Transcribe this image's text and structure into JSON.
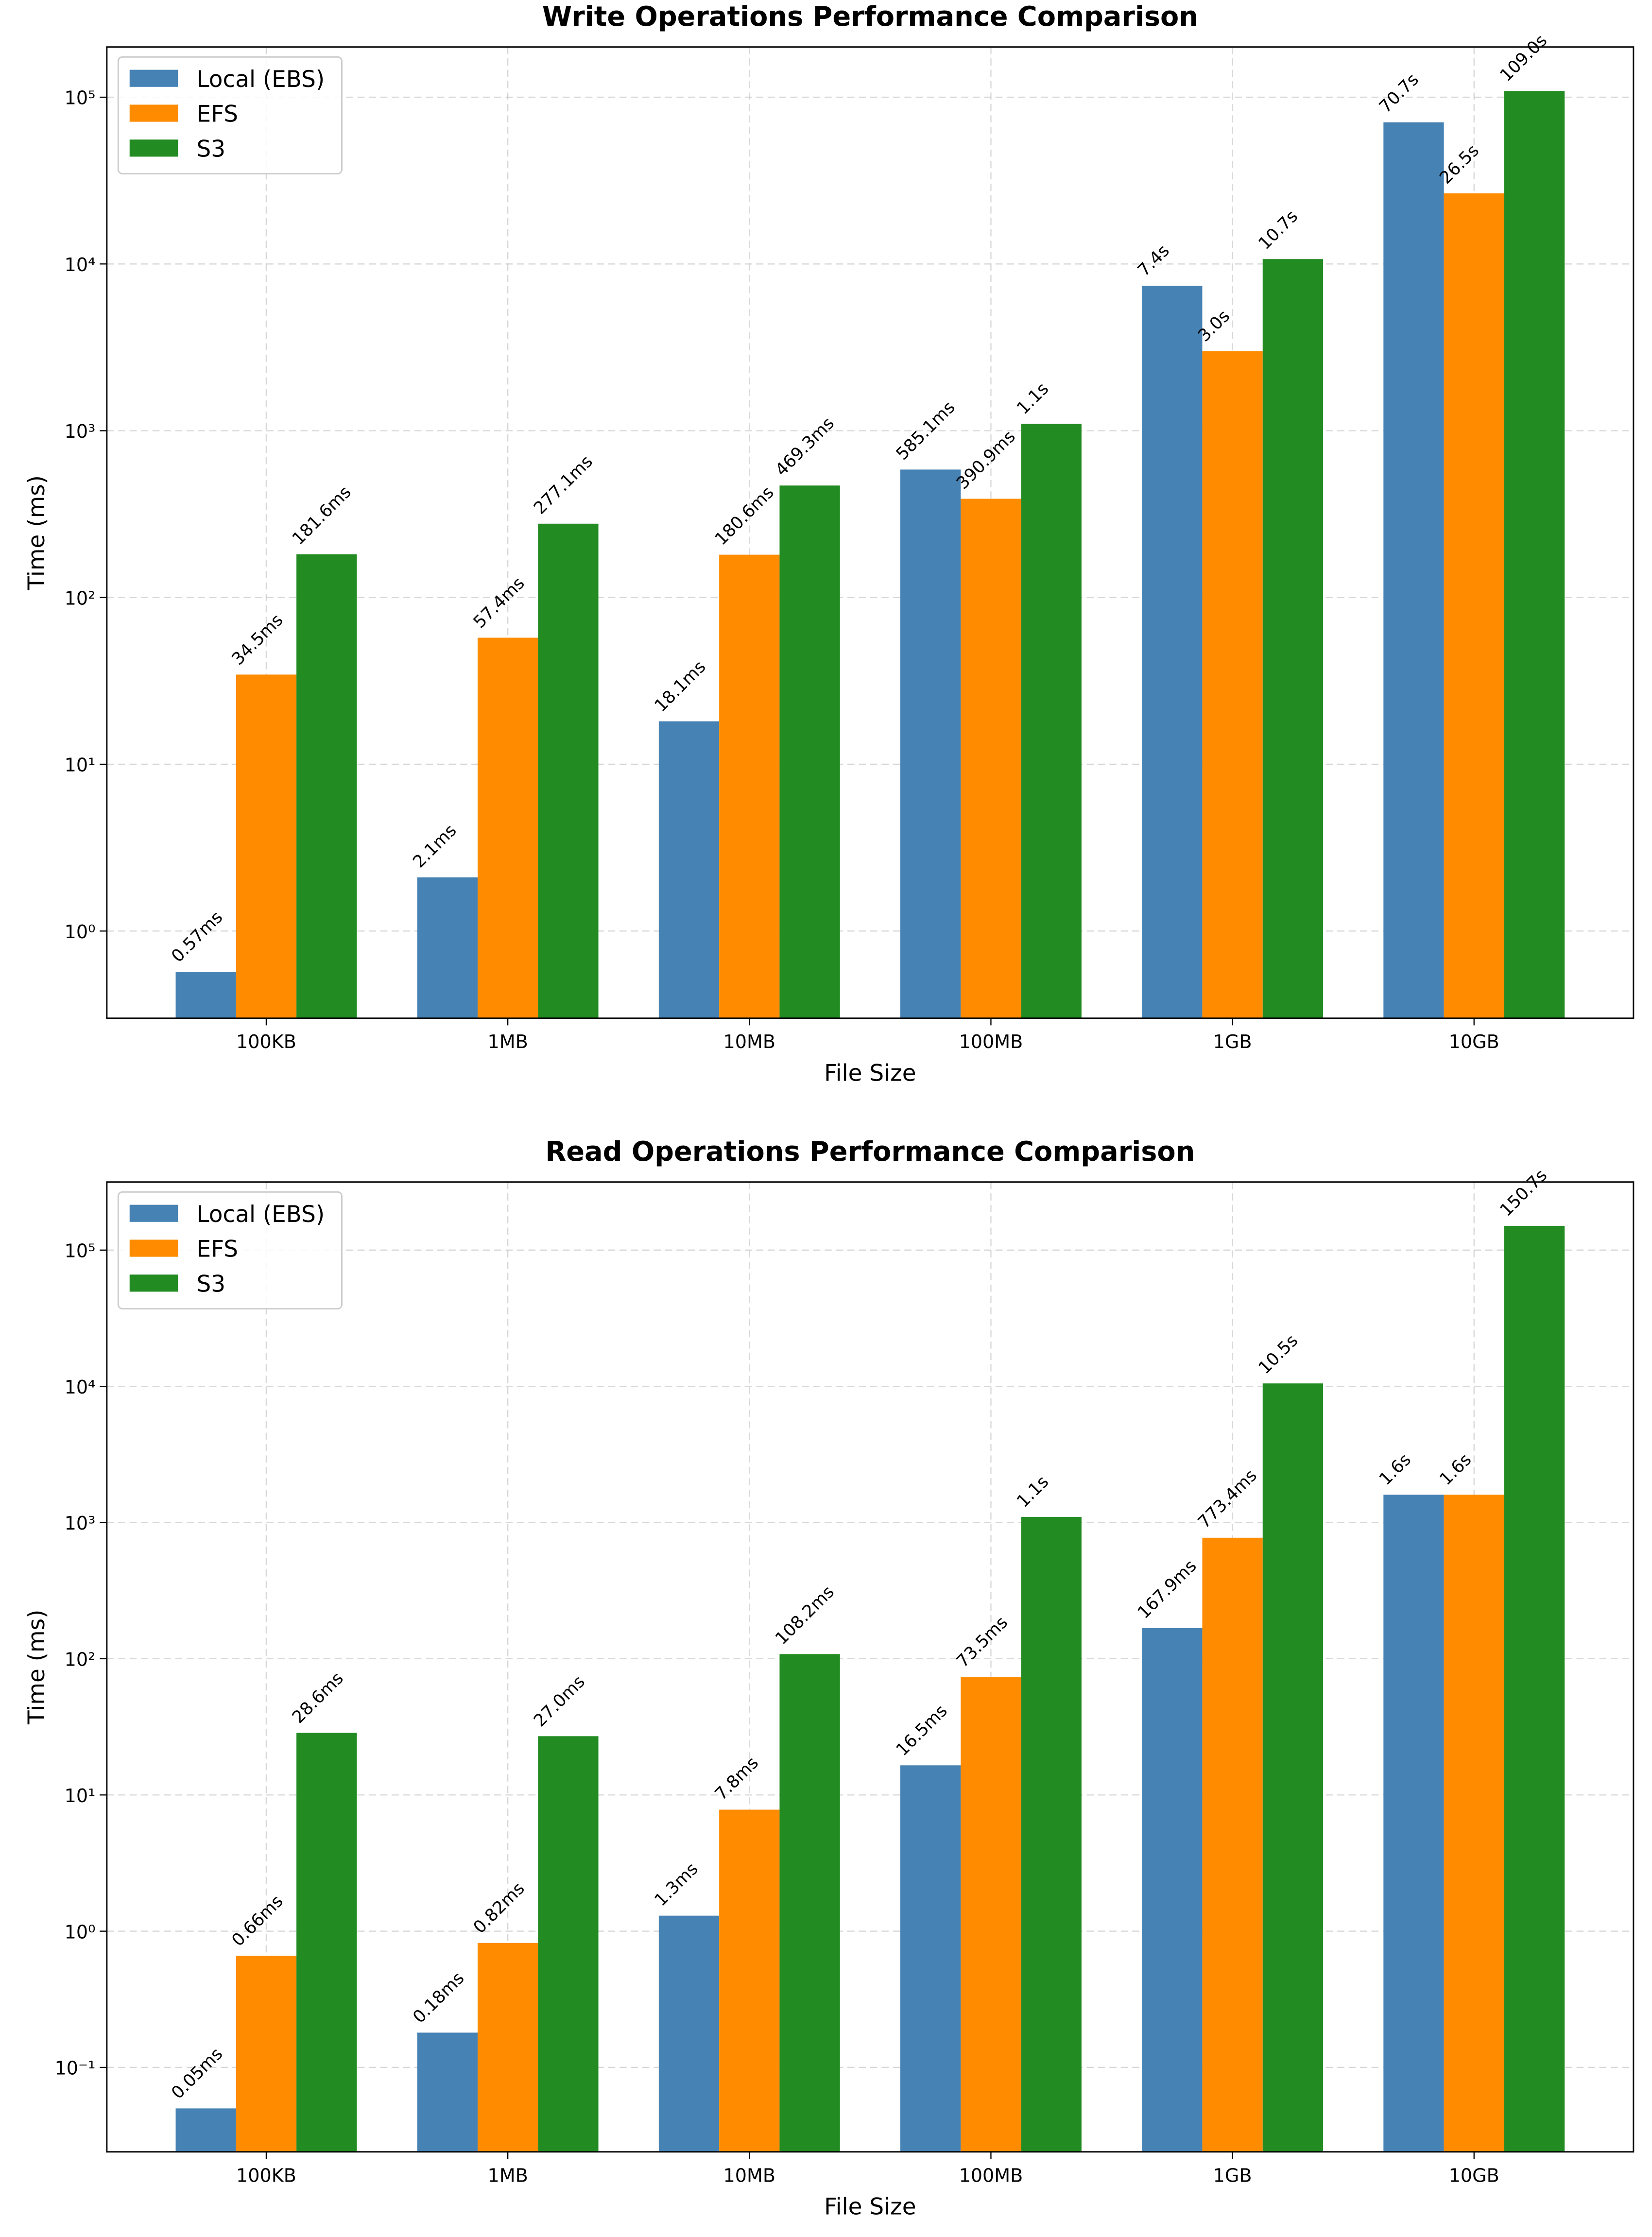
{
  "chart_data": [
    {
      "type": "bar",
      "title": "Write Operations Performance Comparison",
      "x_label": "File Size",
      "y_label": "Time (ms)",
      "categories": [
        "100KB",
        "1MB",
        "10MB",
        "100MB",
        "1GB",
        "10GB"
      ],
      "series": [
        {
          "name": "Local (EBS)",
          "color": "#4682b4",
          "values": [
            0.57,
            2.1,
            18.1,
            585.1,
            7400,
            70700
          ],
          "value_labels": [
            "0.57ms",
            "2.1ms",
            "18.1ms",
            "585.1ms",
            "7.4s",
            "70.7s"
          ]
        },
        {
          "name": "EFS",
          "color": "#ff8c00",
          "values": [
            34.5,
            57.4,
            180.6,
            390.9,
            3000,
            26500
          ],
          "value_labels": [
            "34.5ms",
            "57.4ms",
            "180.6ms",
            "390.9ms",
            "3.0s",
            "26.5s"
          ]
        },
        {
          "name": "S3",
          "color": "#228b22",
          "values": [
            181.6,
            277.1,
            469.3,
            1100,
            10700,
            109000
          ],
          "value_labels": [
            "181.6ms",
            "277.1ms",
            "469.3ms",
            "1.1s",
            "10.7s",
            "109.0s"
          ]
        }
      ],
      "ylim": [
        0.3,
        200000
      ],
      "log_scale": true,
      "grid": true,
      "legend": "upper left",
      "yticks": [
        {
          "value": 1,
          "label": "10⁰"
        },
        {
          "value": 10,
          "label": "10¹"
        },
        {
          "value": 100,
          "label": "10²"
        },
        {
          "value": 1000,
          "label": "10³"
        },
        {
          "value": 10000,
          "label": "10⁴"
        },
        {
          "value": 100000,
          "label": "10⁵"
        }
      ]
    },
    {
      "type": "bar",
      "title": "Read Operations Performance Comparison",
      "x_label": "File Size",
      "y_label": "Time (ms)",
      "categories": [
        "100KB",
        "1MB",
        "10MB",
        "100MB",
        "1GB",
        "10GB"
      ],
      "series": [
        {
          "name": "Local (EBS)",
          "color": "#4682b4",
          "values": [
            0.05,
            0.18,
            1.3,
            16.5,
            167.9,
            1600
          ],
          "value_labels": [
            "0.05ms",
            "0.18ms",
            "1.3ms",
            "16.5ms",
            "167.9ms",
            "1.6s"
          ]
        },
        {
          "name": "EFS",
          "color": "#ff8c00",
          "values": [
            0.66,
            0.82,
            7.8,
            73.5,
            773.4,
            1600
          ],
          "value_labels": [
            "0.66ms",
            "0.82ms",
            "7.8ms",
            "73.5ms",
            "773.4ms",
            "1.6s"
          ]
        },
        {
          "name": "S3",
          "color": "#228b22",
          "values": [
            28.6,
            27.0,
            108.2,
            1100,
            10500,
            150700
          ],
          "value_labels": [
            "28.6ms",
            "27.0ms",
            "108.2ms",
            "1.1s",
            "10.5s",
            "150.7s"
          ]
        }
      ],
      "ylim": [
        0.024,
        316000
      ],
      "log_scale": true,
      "grid": true,
      "legend": "upper left",
      "yticks": [
        {
          "value": 0.1,
          "label": "10⁻¹"
        },
        {
          "value": 1,
          "label": "10⁰"
        },
        {
          "value": 10,
          "label": "10¹"
        },
        {
          "value": 100,
          "label": "10²"
        },
        {
          "value": 1000,
          "label": "10³"
        },
        {
          "value": 10000,
          "label": "10⁴"
        },
        {
          "value": 100000,
          "label": "10⁵"
        }
      ]
    }
  ]
}
